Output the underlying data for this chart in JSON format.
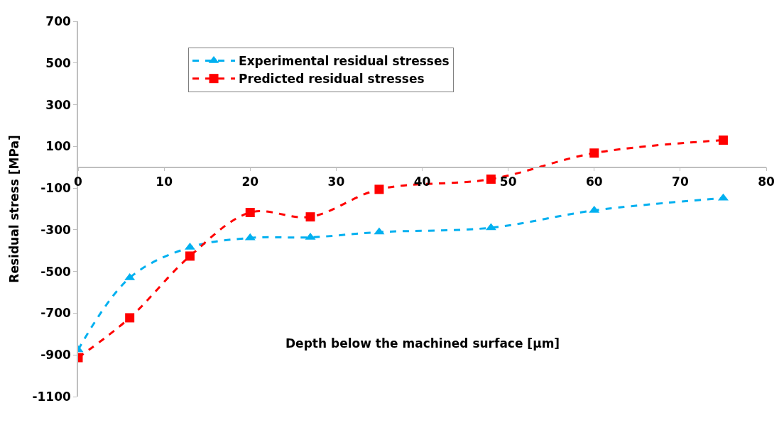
{
  "chart_data": {
    "type": "line",
    "xlabel": "Depth below the machined surface [µm]",
    "ylabel": "Residual stress [MPa]",
    "xlim": [
      0,
      80
    ],
    "xticks": [
      0,
      10,
      20,
      30,
      40,
      50,
      60,
      70,
      80
    ],
    "ylim": [
      -1100,
      700
    ],
    "yticks": [
      -1100,
      -900,
      -700,
      -500,
      -300,
      -100,
      100,
      300,
      500,
      700
    ],
    "legend": "top left",
    "line_style": "dashed",
    "series": [
      {
        "name": "Experimental residual stresses",
        "color": "#00b0f0",
        "marker": "triangle",
        "x": [
          0,
          6,
          13,
          20,
          27,
          35,
          48,
          60,
          75
        ],
        "values": [
          -875,
          -530,
          -384,
          -339,
          -336,
          -311,
          -290,
          -207,
          -148
        ]
      },
      {
        "name": "Predicted residual stresses",
        "color": "#ff0000",
        "marker": "square",
        "x": [
          0,
          6,
          13,
          20,
          27,
          35,
          48,
          60,
          75
        ],
        "values": [
          -913,
          -722,
          -426,
          -217,
          -238,
          -106,
          -57,
          68,
          130
        ]
      }
    ]
  }
}
